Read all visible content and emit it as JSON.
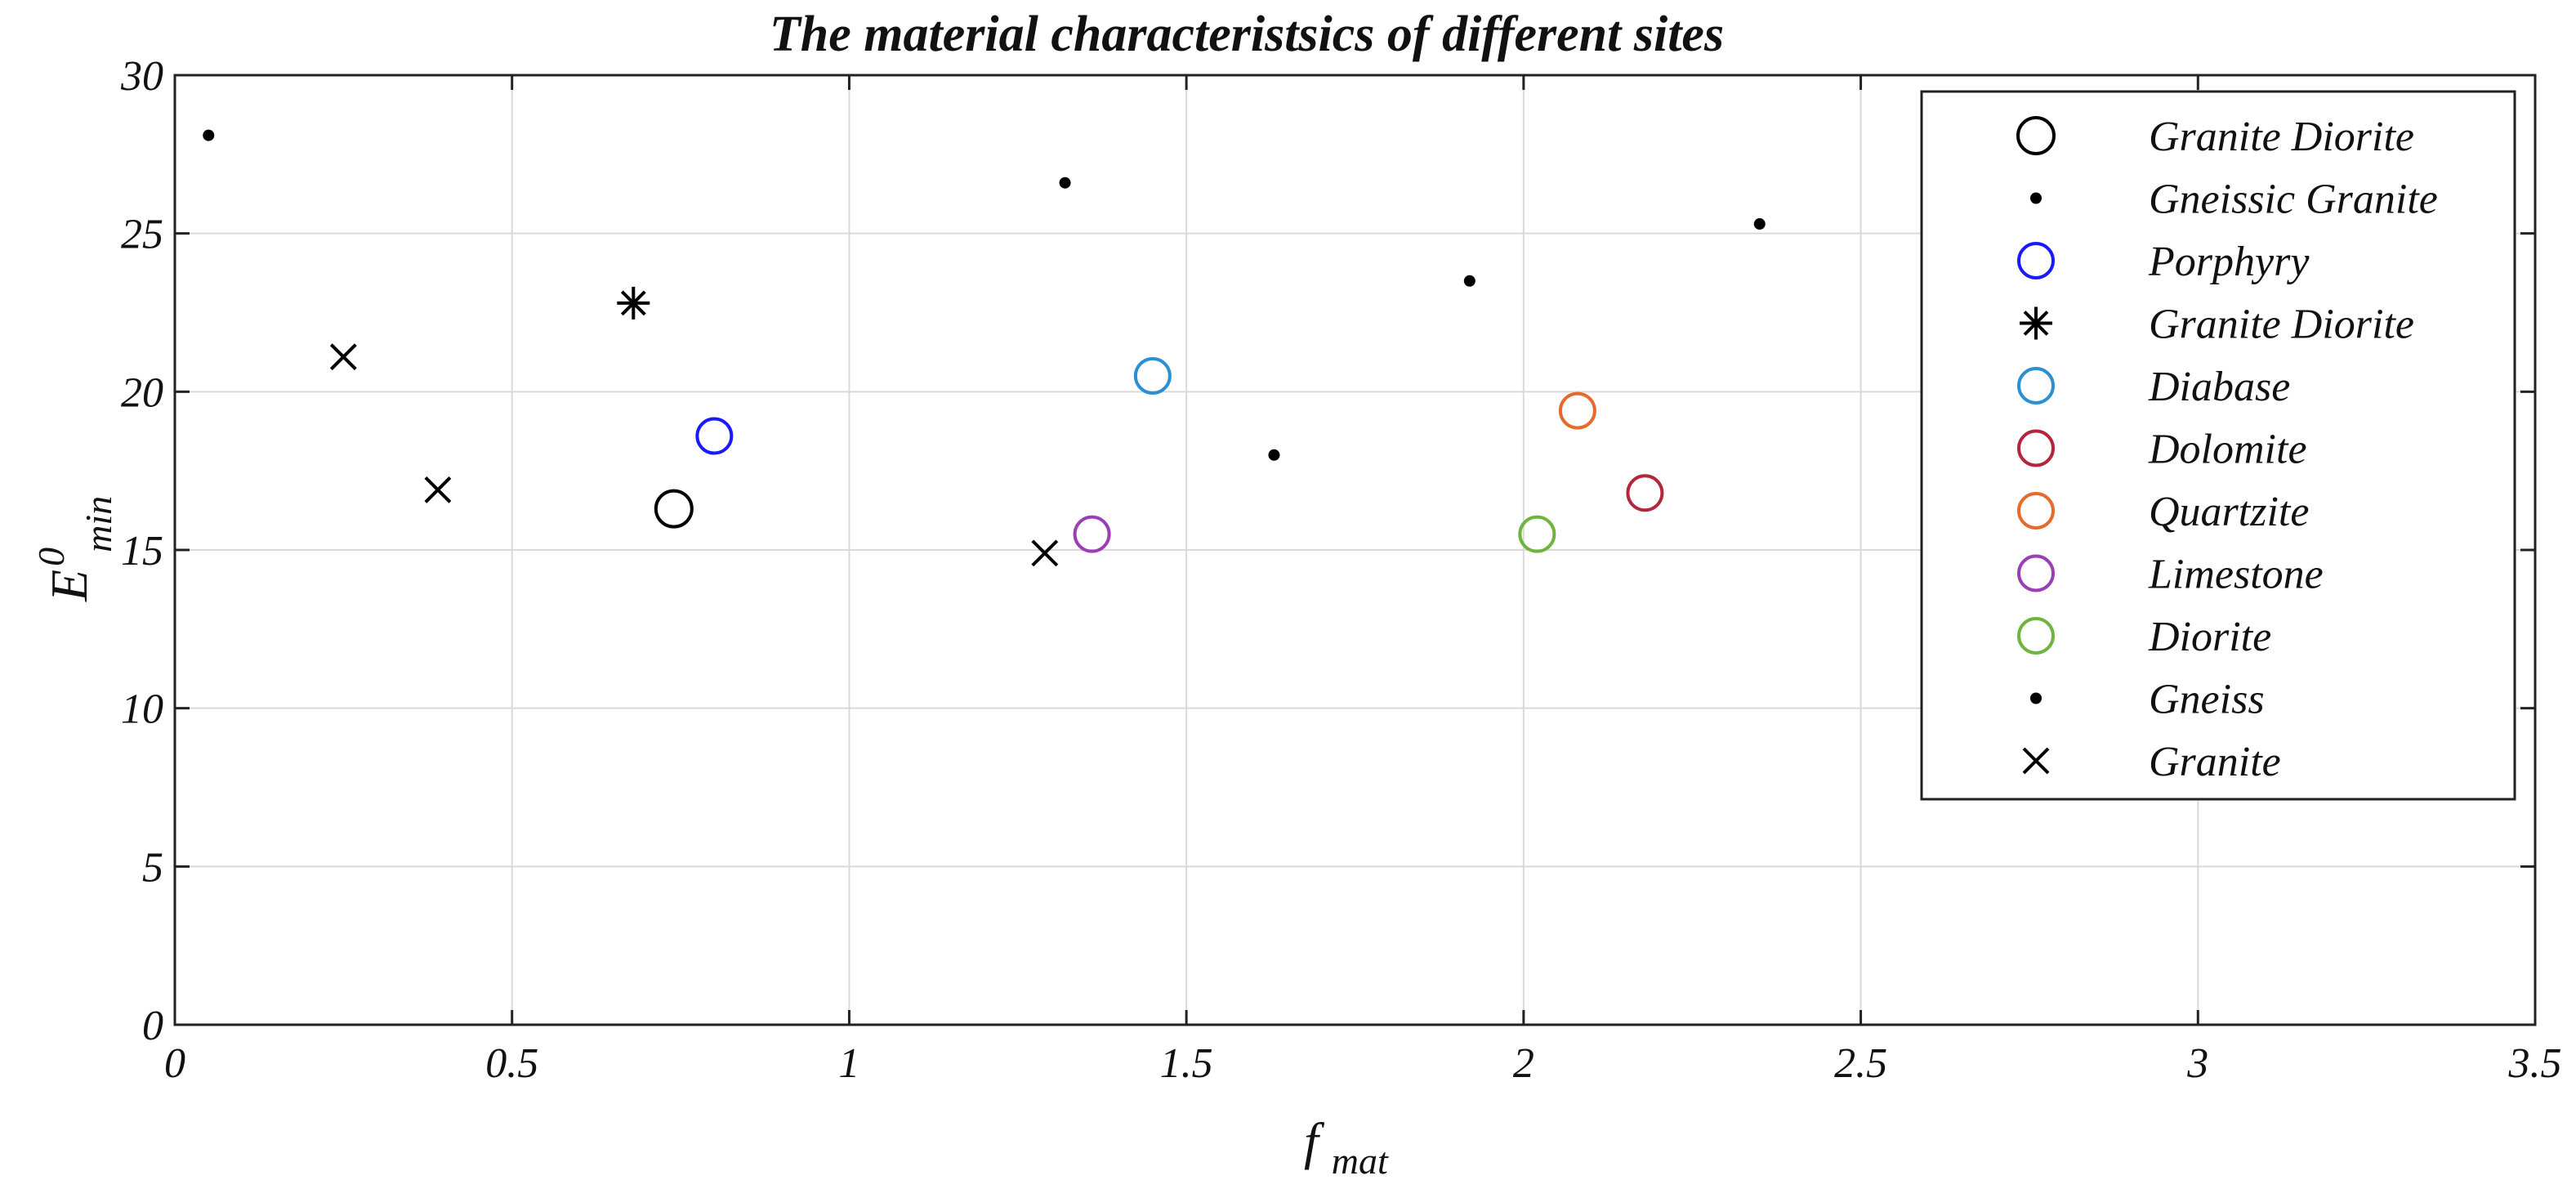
{
  "chart_data": {
    "type": "scatter",
    "title": "The material characteristsics of different sites",
    "xlabel": {
      "base": "f",
      "sub": "mat"
    },
    "ylabel": {
      "base": "E",
      "sup": "0",
      "sub": "min"
    },
    "xlim": [
      0,
      3.5
    ],
    "ylim": [
      0,
      30
    ],
    "xticks": [
      0,
      0.5,
      1,
      1.5,
      2,
      2.5,
      3,
      3.5
    ],
    "yticks": [
      0,
      5,
      10,
      15,
      20,
      25,
      30
    ],
    "xtick_labels": [
      "0",
      "0.5",
      "1",
      "1.5",
      "2",
      "2.5",
      "3",
      "3.5"
    ],
    "ytick_labels": [
      "0",
      "5",
      "10",
      "15",
      "20",
      "25",
      "30"
    ],
    "grid": true,
    "legend_position": "top-right",
    "series": [
      {
        "name": "Granite Diorite",
        "marker": "circle",
        "size": "large",
        "color": "#000000",
        "points": [
          [
            0.74,
            16.3
          ]
        ]
      },
      {
        "name": "Gneissic Granite",
        "marker": "dot",
        "color": "#000000",
        "points": [
          [
            0.05,
            28.1
          ],
          [
            1.32,
            26.6
          ],
          [
            2.35,
            25.3
          ]
        ]
      },
      {
        "name": "Porphyry",
        "marker": "circle",
        "color": "#1a1aff",
        "points": [
          [
            0.8,
            18.6
          ]
        ]
      },
      {
        "name": "Granite Diorite",
        "marker": "asterisk",
        "color": "#000000",
        "points": [
          [
            0.68,
            22.8
          ]
        ]
      },
      {
        "name": "Diabase",
        "marker": "circle",
        "color": "#2d8fd0",
        "points": [
          [
            1.45,
            20.5
          ]
        ]
      },
      {
        "name": "Dolomite",
        "marker": "circle",
        "color": "#b3263d",
        "points": [
          [
            2.18,
            16.8
          ]
        ]
      },
      {
        "name": "Quartzite",
        "marker": "circle",
        "color": "#e66a2c",
        "points": [
          [
            2.08,
            19.4
          ]
        ]
      },
      {
        "name": "Limestone",
        "marker": "circle",
        "color": "#9a3fb5",
        "points": [
          [
            1.36,
            15.5
          ]
        ]
      },
      {
        "name": "Diorite",
        "marker": "circle",
        "color": "#6fb43f",
        "points": [
          [
            2.02,
            15.5
          ]
        ]
      },
      {
        "name": "Gneiss",
        "marker": "dot",
        "color": "#000000",
        "points": [
          [
            1.63,
            18.0
          ],
          [
            1.92,
            23.5
          ]
        ]
      },
      {
        "name": "Granite",
        "marker": "x",
        "color": "#000000",
        "points": [
          [
            0.25,
            21.1
          ],
          [
            0.39,
            16.9
          ],
          [
            1.29,
            14.9
          ]
        ]
      }
    ]
  }
}
